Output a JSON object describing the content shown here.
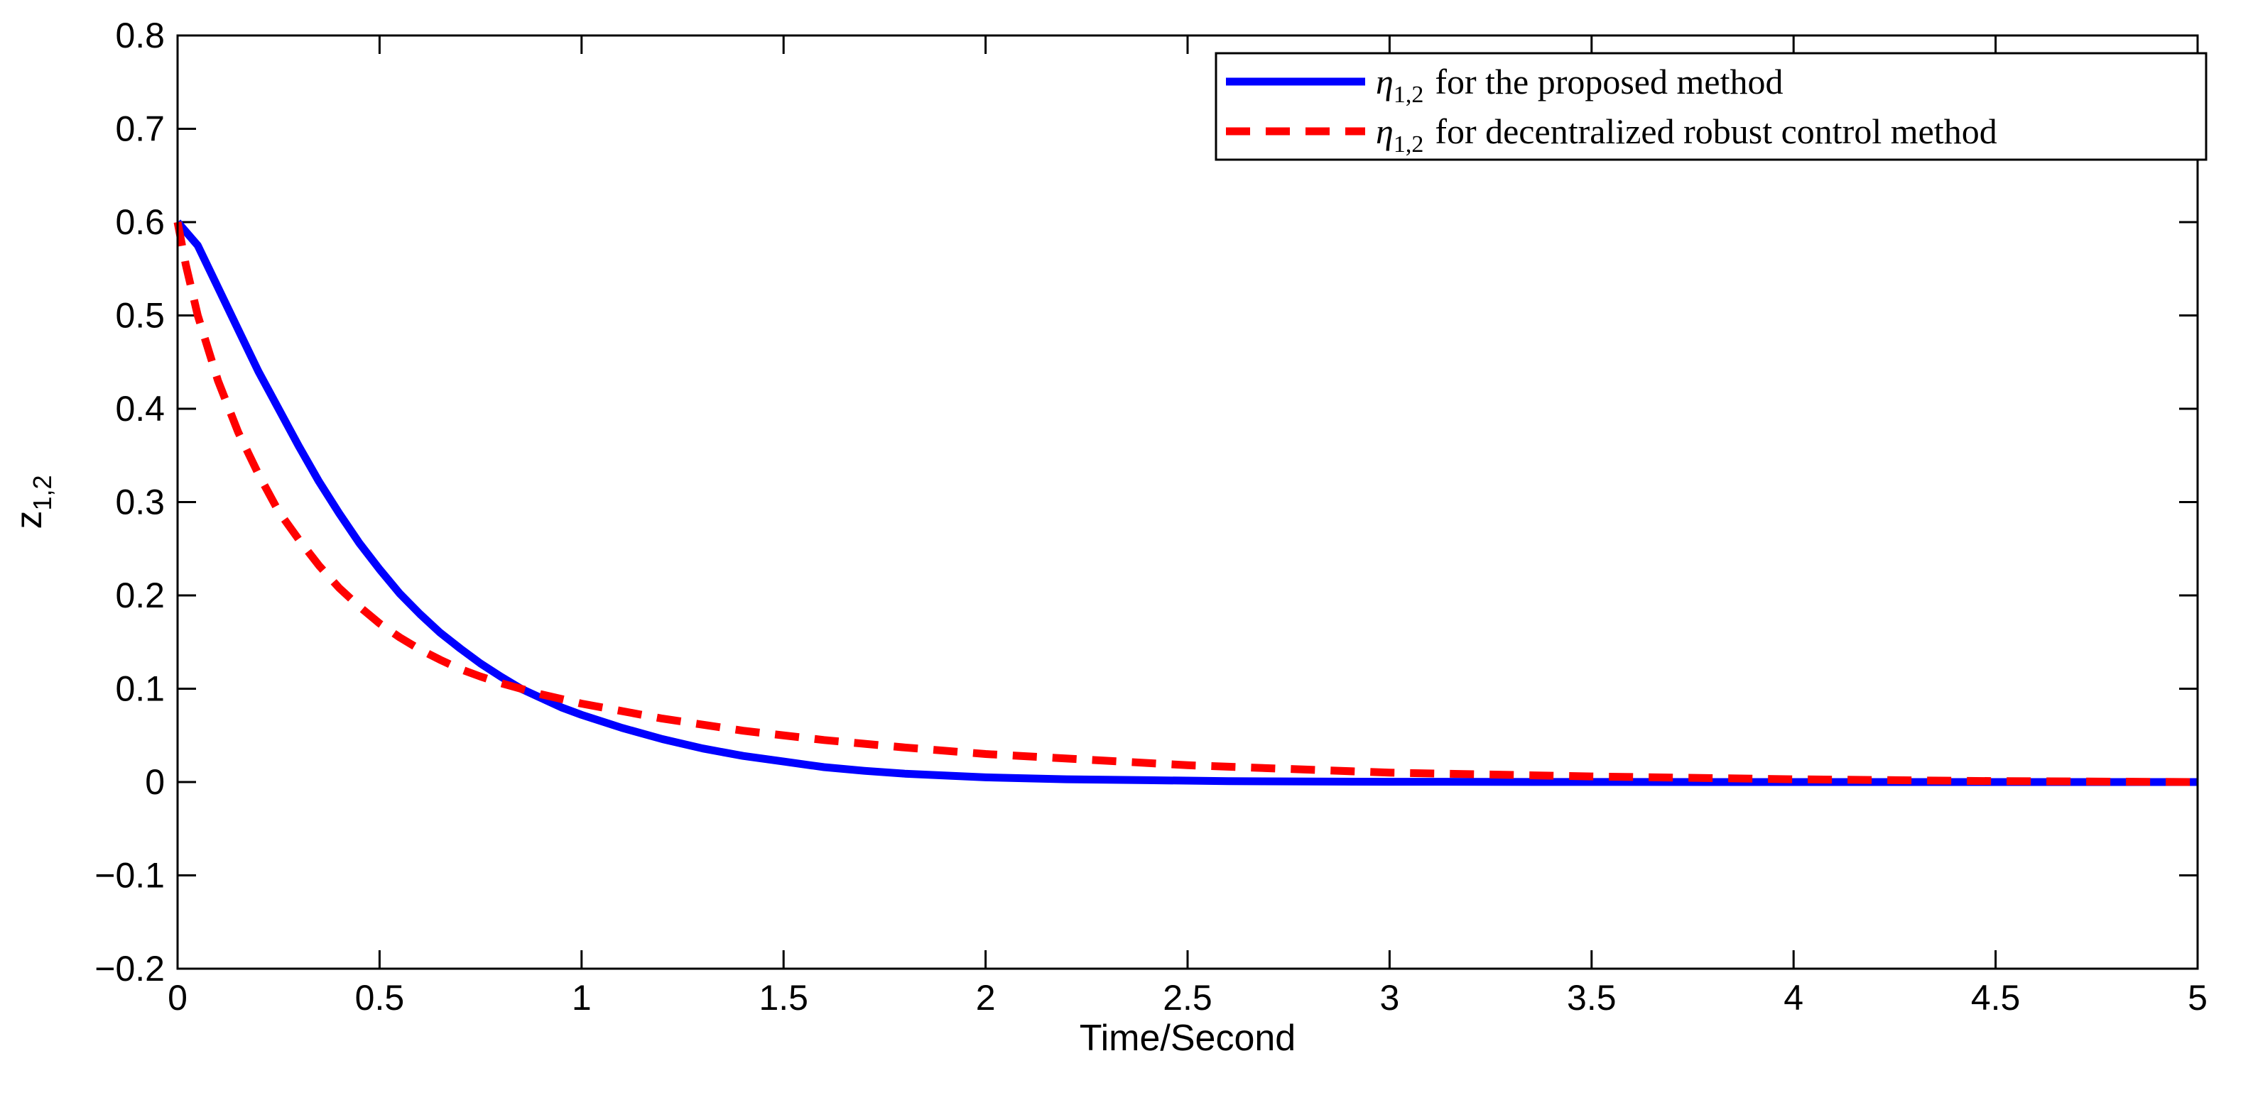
{
  "chart_data": {
    "type": "line",
    "title": "",
    "xlabel": "Time/Second",
    "ylabel": "z",
    "ylabel_sub": "1,2",
    "xlim": [
      0,
      5
    ],
    "ylim": [
      -0.2,
      0.8
    ],
    "xticks": [
      0,
      0.5,
      1,
      1.5,
      2,
      2.5,
      3,
      3.5,
      4,
      4.5,
      5
    ],
    "xtick_labels": [
      "0",
      "0.5",
      "1",
      "1.5",
      "2",
      "2.5",
      "3",
      "3.5",
      "4",
      "4.5",
      "5"
    ],
    "yticks": [
      -0.2,
      -0.1,
      0,
      0.1,
      0.2,
      0.3,
      0.4,
      0.5,
      0.6,
      0.7,
      0.8
    ],
    "ytick_labels": [
      "−0.2",
      "−0.1",
      "0",
      "0.1",
      "0.2",
      "0.3",
      "0.4",
      "0.5",
      "0.6",
      "0.7",
      "0.8"
    ],
    "grid": false,
    "legend_position": "top-right",
    "series": [
      {
        "name": "proposed",
        "legend_symbol": "η",
        "legend_sub": "1,2",
        "legend_text": "for the proposed method",
        "color": "#0000ff",
        "style": "solid",
        "x": [
          0,
          0.05,
          0.1,
          0.15,
          0.2,
          0.25,
          0.3,
          0.35,
          0.4,
          0.45,
          0.5,
          0.55,
          0.6,
          0.65,
          0.7,
          0.75,
          0.8,
          0.85,
          0.9,
          0.95,
          1.0,
          1.1,
          1.2,
          1.3,
          1.4,
          1.5,
          1.6,
          1.7,
          1.8,
          2.0,
          2.2,
          2.4,
          2.6,
          2.8,
          3.0,
          3.5,
          4.0,
          4.5,
          5.0
        ],
        "y": [
          0.6,
          0.575,
          0.53,
          0.485,
          0.44,
          0.4,
          0.36,
          0.322,
          0.288,
          0.256,
          0.228,
          0.202,
          0.18,
          0.16,
          0.143,
          0.127,
          0.113,
          0.1,
          0.09,
          0.08,
          0.072,
          0.058,
          0.046,
          0.036,
          0.028,
          0.022,
          0.016,
          0.012,
          0.009,
          0.005,
          0.003,
          0.002,
          0.001,
          0.0005,
          0.0003,
          0.0001,
          0,
          0,
          0
        ]
      },
      {
        "name": "decentralized",
        "legend_symbol": "η",
        "legend_sub": "1,2",
        "legend_text": "for decentralized robust control method",
        "color": "#ff0000",
        "style": "dashed",
        "x": [
          0,
          0.02,
          0.05,
          0.1,
          0.15,
          0.2,
          0.25,
          0.3,
          0.35,
          0.4,
          0.45,
          0.5,
          0.55,
          0.6,
          0.65,
          0.7,
          0.75,
          0.8,
          0.9,
          1.0,
          1.2,
          1.4,
          1.6,
          1.8,
          2.0,
          2.5,
          3.0,
          3.5,
          4.0,
          4.5,
          5.0
        ],
        "y": [
          0.6,
          0.555,
          0.5,
          0.43,
          0.375,
          0.33,
          0.29,
          0.26,
          0.232,
          0.208,
          0.188,
          0.17,
          0.155,
          0.142,
          0.131,
          0.121,
          0.113,
          0.106,
          0.094,
          0.084,
          0.068,
          0.055,
          0.045,
          0.037,
          0.03,
          0.018,
          0.01,
          0.006,
          0.003,
          0.001,
          0
        ]
      }
    ]
  }
}
